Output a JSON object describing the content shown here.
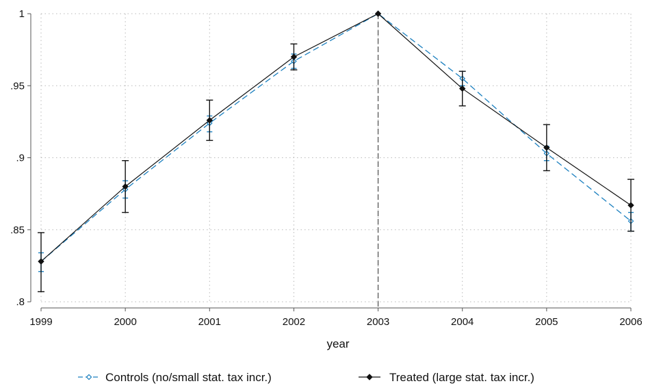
{
  "chart_data": {
    "type": "line",
    "title": "",
    "xlabel": "year",
    "ylabel": "",
    "x": [
      1999,
      2000,
      2001,
      2002,
      2003,
      2004,
      2005,
      2006
    ],
    "xlim": [
      1999,
      2006
    ],
    "ylim": [
      0.8,
      1.0
    ],
    "x_tick_labels": [
      "1999",
      "2000",
      "2001",
      "2002",
      "2003",
      "2004",
      "2005",
      "2006"
    ],
    "y_ticks": [
      0.8,
      0.85,
      0.9,
      0.95,
      1.0
    ],
    "y_tick_labels": [
      ".8",
      ".85",
      ".9",
      ".95",
      "1"
    ],
    "grid": "dotted",
    "reference_line": {
      "x": 2003,
      "style": "dashed"
    },
    "legend_position": "bottom",
    "series": [
      {
        "name": "Controls (no/small stat. tax incr.)",
        "color": "#1a7fbf",
        "line_style": "dashed",
        "marker": "hollow-diamond",
        "values": [
          0.828,
          0.878,
          0.924,
          0.967,
          1.0,
          0.955,
          0.903,
          0.856
        ],
        "ci_low": [
          0.821,
          0.872,
          0.918,
          0.962,
          1.0,
          0.95,
          0.898,
          0.849
        ],
        "ci_high": [
          0.834,
          0.884,
          0.929,
          0.972,
          1.0,
          0.96,
          0.908,
          0.862
        ]
      },
      {
        "name": "Treated (large stat. tax incr.)",
        "color": "#111111",
        "line_style": "solid",
        "marker": "filled-diamond",
        "values": [
          0.828,
          0.88,
          0.926,
          0.97,
          1.0,
          0.948,
          0.907,
          0.867
        ],
        "ci_low": [
          0.807,
          0.862,
          0.912,
          0.961,
          1.0,
          0.936,
          0.891,
          0.849
        ],
        "ci_high": [
          0.848,
          0.898,
          0.94,
          0.979,
          1.0,
          0.96,
          0.923,
          0.885
        ]
      }
    ]
  }
}
